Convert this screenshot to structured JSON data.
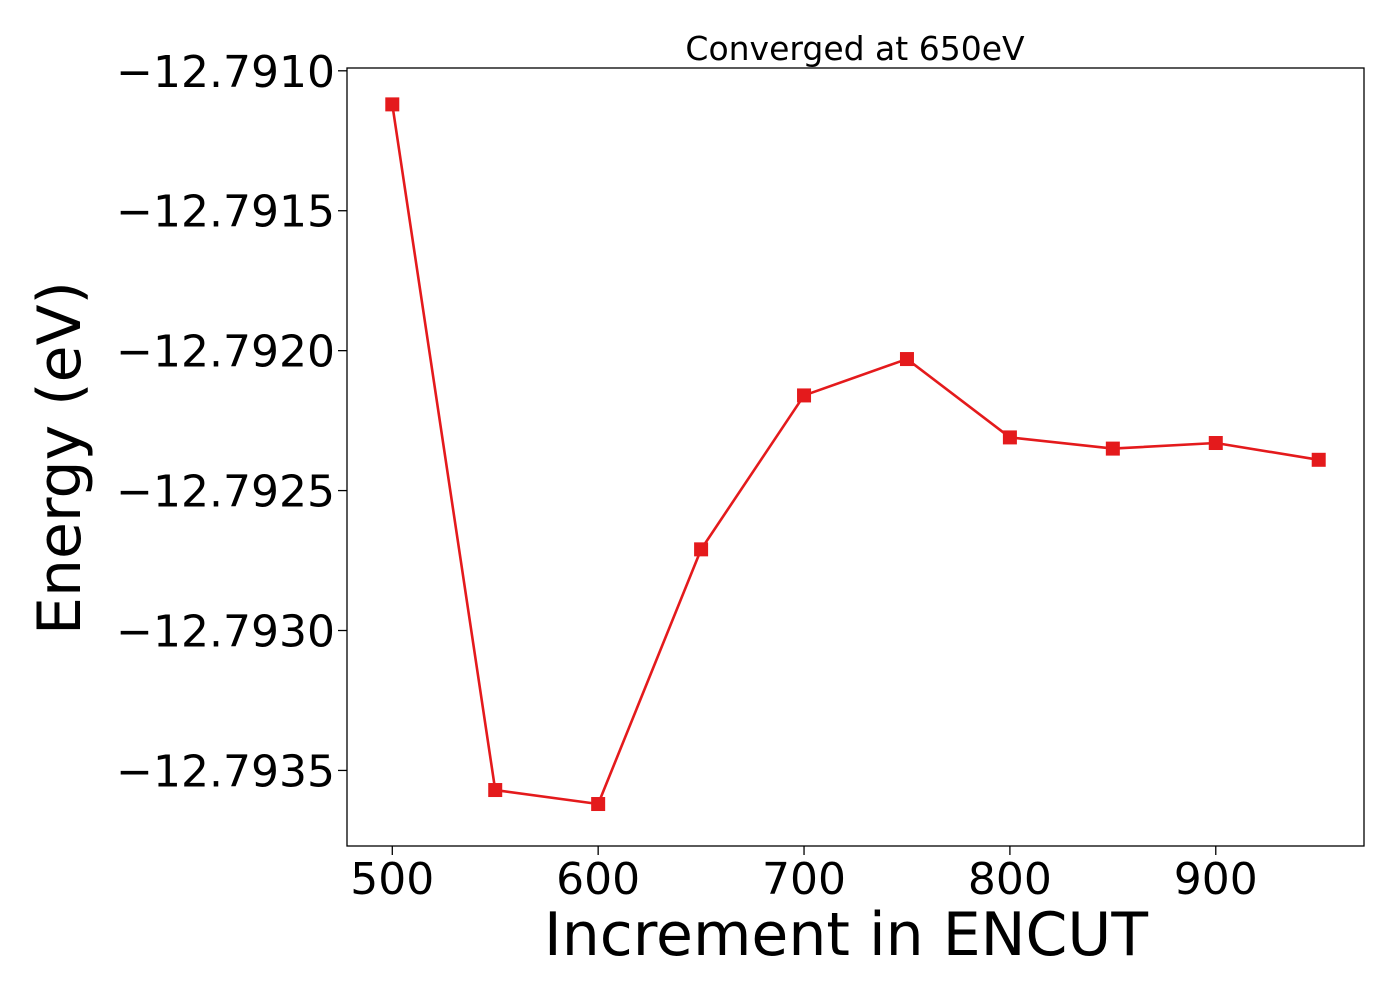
{
  "chart_data": {
    "type": "line",
    "title": "Converged at 650eV",
    "xlabel": "Increment in ENCUT",
    "ylabel": "Energy (eV)",
    "x": [
      500,
      550,
      600,
      650,
      700,
      750,
      800,
      850,
      900,
      950
    ],
    "series": [
      {
        "values": [
          -12.79112,
          -12.79357,
          -12.79362,
          -12.79271,
          -12.79216,
          -12.79203,
          -12.79231,
          -12.79235,
          -12.79233,
          -12.79239
        ],
        "color": "#e41a1c",
        "marker": "square"
      }
    ],
    "xlim": [
      478,
      972
    ],
    "ylim": [
      -12.79377,
      -12.79099
    ],
    "xticks": [
      500,
      600,
      700,
      800,
      900
    ],
    "xtick_labels": [
      "500",
      "600",
      "700",
      "800",
      "900"
    ],
    "yticks": [
      -12.791,
      -12.7915,
      -12.792,
      -12.7925,
      -12.793,
      -12.7935
    ],
    "ytick_labels": [
      "−12.7910",
      "−12.7915",
      "−12.7920",
      "−12.7925",
      "−12.7930",
      "−12.7935"
    ],
    "grid": false,
    "legend": "none"
  }
}
